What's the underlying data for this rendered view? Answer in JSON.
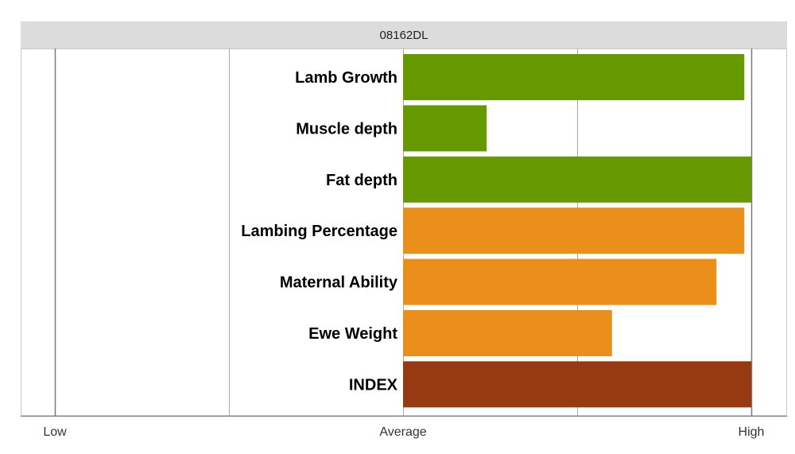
{
  "chart_data": {
    "type": "bar",
    "orientation": "horizontal",
    "title": "08162DL",
    "categories": [
      "Lamb Growth",
      "Muscle depth",
      "Fat depth",
      "Lambing Percentage",
      "Maternal Ability",
      "Ewe Weight",
      "INDEX"
    ],
    "values": [
      0.98,
      0.24,
      1.0,
      0.98,
      0.9,
      0.6,
      1.0
    ],
    "colors": [
      "#669900",
      "#669900",
      "#669900",
      "#ea8f1a",
      "#ea8f1a",
      "#ea8f1a",
      "#973a12"
    ],
    "xlim": [
      -1,
      1
    ],
    "x_ticks": [
      {
        "value": -1,
        "label": "Low"
      },
      {
        "value": -0.5,
        "label": ""
      },
      {
        "value": 0,
        "label": "Average"
      },
      {
        "value": 0.5,
        "label": ""
      },
      {
        "value": 1,
        "label": "High"
      }
    ],
    "grid": true,
    "xlabel": "",
    "ylabel": ""
  }
}
